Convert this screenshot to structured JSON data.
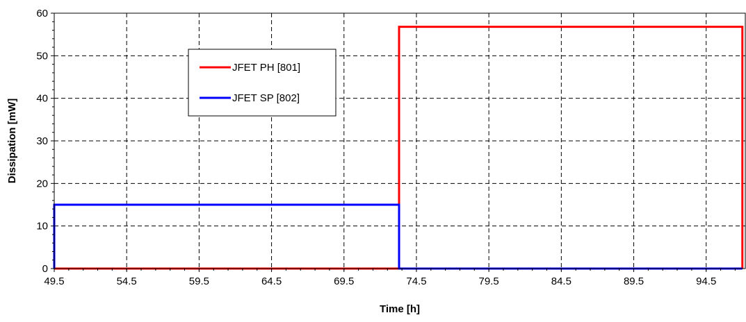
{
  "chart_data": {
    "type": "line",
    "xlabel": "Time [h]",
    "ylabel": "Dissipation [mW]",
    "xlim": [
      49.5,
      97.2
    ],
    "ylim": [
      0,
      60
    ],
    "x_ticks": [
      "49.5",
      "54.5",
      "59.5",
      "64.5",
      "69.5",
      "74.5",
      "79.5",
      "84.5",
      "89.5",
      "94.5"
    ],
    "y_ticks": [
      "0",
      "10",
      "20",
      "30",
      "40",
      "50",
      "60"
    ],
    "grid": true,
    "legend_position": "upper-left-inside",
    "series": [
      {
        "name": "JFET PH [801]",
        "color": "#ff0000",
        "x": [
          49.5,
          73.3,
          73.3,
          97.0,
          97.0
        ],
        "y": [
          0,
          0,
          56.8,
          56.8,
          0
        ]
      },
      {
        "name": "JFET SP [802]",
        "color": "#0000ff",
        "x": [
          49.5,
          49.5,
          73.3,
          73.3,
          97.0
        ],
        "y": [
          0,
          15,
          15,
          0,
          0
        ]
      }
    ]
  }
}
